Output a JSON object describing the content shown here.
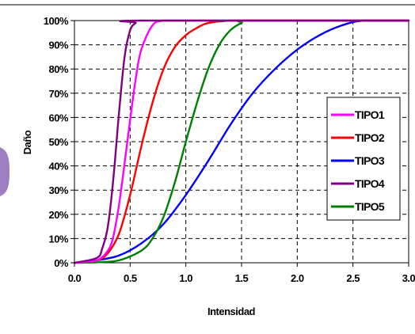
{
  "chart_data": {
    "type": "line",
    "xlabel": "Intensidad",
    "ylabel": "Daño",
    "xlim": [
      0,
      3.0
    ],
    "ylim": [
      0,
      100
    ],
    "x_tick_labels": [
      "0.0",
      "0.5",
      "1.0",
      "1.5",
      "2.0",
      "2.5",
      "3.0"
    ],
    "y_tick_labels": [
      "0%",
      "10%",
      "20%",
      "30%",
      "40%",
      "50%",
      "60%",
      "70%",
      "80%",
      "90%",
      "100%"
    ],
    "grid": true,
    "legend_position": "right",
    "series": [
      {
        "name": "TIPO1",
        "color": "#ff00ff",
        "x": [
          0,
          0.2,
          0.3,
          0.35,
          0.4,
          0.45,
          0.5,
          0.55,
          0.6,
          0.7,
          0.8,
          1.0,
          3.0
        ],
        "y": [
          0,
          1,
          5,
          11,
          24,
          41,
          59,
          76,
          88,
          98,
          100,
          100,
          100
        ]
      },
      {
        "name": "TIPO2",
        "color": "#ff0000",
        "x": [
          0,
          0.2,
          0.3,
          0.4,
          0.5,
          0.6,
          0.7,
          0.8,
          0.9,
          1.0,
          1.1,
          1.2,
          1.4,
          1.6,
          3.0
        ],
        "y": [
          0,
          1,
          4,
          12,
          28,
          48,
          66,
          80,
          89,
          94,
          97,
          99,
          100,
          100,
          100
        ]
      },
      {
        "name": "TIPO3",
        "color": "#0000ff",
        "x": [
          0,
          0.2,
          0.4,
          0.6,
          0.8,
          1.0,
          1.2,
          1.4,
          1.6,
          1.8,
          2.0,
          2.2,
          2.4,
          2.6,
          3.0
        ],
        "y": [
          0,
          1,
          3,
          8,
          16,
          28,
          42,
          57,
          70,
          80,
          88,
          94,
          98,
          100,
          100
        ]
      },
      {
        "name": "TIPO4",
        "color": "#800080",
        "x": [
          0,
          0.2,
          0.25,
          0.3,
          0.35,
          0.4,
          0.45,
          0.5,
          0.55,
          0.6,
          3.0
        ],
        "y": [
          0,
          2,
          6,
          15,
          35,
          62,
          85,
          96,
          99,
          100,
          100
        ]
      },
      {
        "name": "TIPO5",
        "color": "#008000",
        "x": [
          0,
          0.2,
          0.4,
          0.6,
          0.7,
          0.8,
          0.9,
          1.0,
          1.1,
          1.2,
          1.3,
          1.4,
          1.5,
          1.6,
          3.0
        ],
        "y": [
          0,
          0.2,
          1,
          5,
          10,
          19,
          33,
          50,
          66,
          80,
          90,
          96,
          99,
          100,
          100
        ]
      }
    ]
  }
}
